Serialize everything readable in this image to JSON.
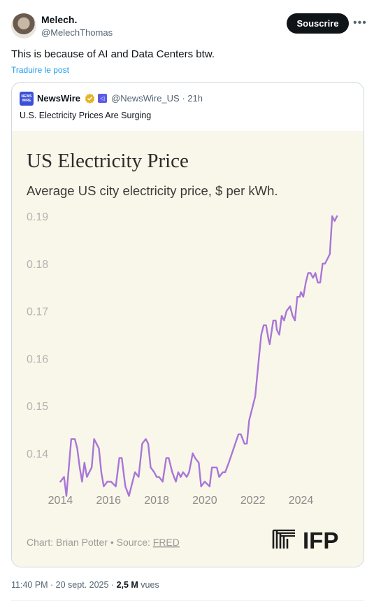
{
  "author": {
    "name": "Melech.",
    "handle": "@MelechThomas"
  },
  "actions": {
    "subscribe_label": "Souscrire",
    "more_icon": "more-horizontal-icon"
  },
  "post": {
    "text": "This is because of AI and Data Centers btw.",
    "translate_label": "Traduire le post"
  },
  "quote": {
    "source_name": "NewsWire",
    "logo_text_top": "NEWS",
    "logo_text_bottom": "WIRE",
    "handle_time": "@NewsWire_US · 21h",
    "text": "U.S. Electricity Prices Are Surging"
  },
  "chart_data": {
    "type": "line",
    "title": "US Electricity Price",
    "subtitle": "Average US city electricity price, $ per kWh.",
    "xlabel": "",
    "ylabel": "",
    "x_ticks": [
      "2014",
      "2016",
      "2018",
      "2020",
      "2022",
      "2024"
    ],
    "y_ticks": [
      "0.14",
      "0.15",
      "0.16",
      "0.17",
      "0.18",
      "0.19"
    ],
    "xlim": [
      2013.9,
      2025.7
    ],
    "ylim": [
      0.132,
      0.19
    ],
    "grid": false,
    "line_color": "#a876d8",
    "source_prefix": "Chart: Brian Potter • Source: ",
    "source_link": "FRED",
    "brand": "IFP",
    "series": [
      {
        "x": [
          2014.0,
          2014.15,
          2014.25,
          2014.45,
          2014.6,
          2014.7,
          2014.8,
          2014.9,
          2015.0,
          2015.1,
          2015.2,
          2015.3,
          2015.4,
          2015.5,
          2015.6,
          2015.7,
          2015.8,
          2015.95,
          2016.1,
          2016.3,
          2016.45,
          2016.55,
          2016.7,
          2016.85,
          2016.95,
          2017.1,
          2017.25,
          2017.4,
          2017.55,
          2017.65,
          2017.75,
          2017.9,
          2018.0,
          2018.1,
          2018.25,
          2018.4,
          2018.5,
          2018.65,
          2018.8,
          2018.9,
          2019.0,
          2019.1,
          2019.25,
          2019.35,
          2019.5,
          2019.6,
          2019.75,
          2019.85,
          2020.0,
          2020.2,
          2020.3,
          2020.5,
          2020.6,
          2020.75,
          2020.85,
          2021.0,
          2021.2,
          2021.4,
          2021.5,
          2021.65,
          2021.75,
          2021.85,
          2022.0,
          2022.1,
          2022.25,
          2022.35,
          2022.45,
          2022.55,
          2022.65,
          2022.7,
          2022.85,
          2022.95,
          2023.0,
          2023.1,
          2023.2,
          2023.3,
          2023.4,
          2023.55,
          2023.65,
          2023.75,
          2023.85,
          2023.95,
          2024.0,
          2024.1,
          2024.2,
          2024.3,
          2024.4,
          2024.5,
          2024.6,
          2024.7,
          2024.8,
          2024.9,
          2025.0,
          2025.1,
          2025.2,
          2025.3,
          2025.4,
          2025.5
        ],
        "y": [
          0.134,
          0.135,
          0.131,
          0.143,
          0.143,
          0.141,
          0.137,
          0.134,
          0.138,
          0.135,
          0.136,
          0.137,
          0.143,
          0.142,
          0.141,
          0.136,
          0.133,
          0.134,
          0.134,
          0.133,
          0.139,
          0.139,
          0.133,
          0.131,
          0.133,
          0.136,
          0.135,
          0.142,
          0.143,
          0.142,
          0.137,
          0.136,
          0.135,
          0.135,
          0.134,
          0.139,
          0.139,
          0.136,
          0.134,
          0.136,
          0.135,
          0.136,
          0.135,
          0.136,
          0.14,
          0.139,
          0.138,
          0.133,
          0.134,
          0.133,
          0.137,
          0.137,
          0.135,
          0.136,
          0.136,
          0.138,
          0.141,
          0.144,
          0.144,
          0.142,
          0.142,
          0.147,
          0.15,
          0.152,
          0.16,
          0.165,
          0.167,
          0.167,
          0.164,
          0.163,
          0.168,
          0.168,
          0.166,
          0.165,
          0.169,
          0.168,
          0.17,
          0.171,
          0.169,
          0.168,
          0.173,
          0.173,
          0.174,
          0.173,
          0.176,
          0.178,
          0.178,
          0.177,
          0.178,
          0.176,
          0.176,
          0.18,
          0.18,
          0.181,
          0.182,
          0.19,
          0.189,
          0.19
        ]
      }
    ]
  },
  "footer": {
    "timestamp": "11:40 PM · 20 sept. 2025 · ",
    "views_count": "2,5 M",
    "views_label": " vues"
  }
}
